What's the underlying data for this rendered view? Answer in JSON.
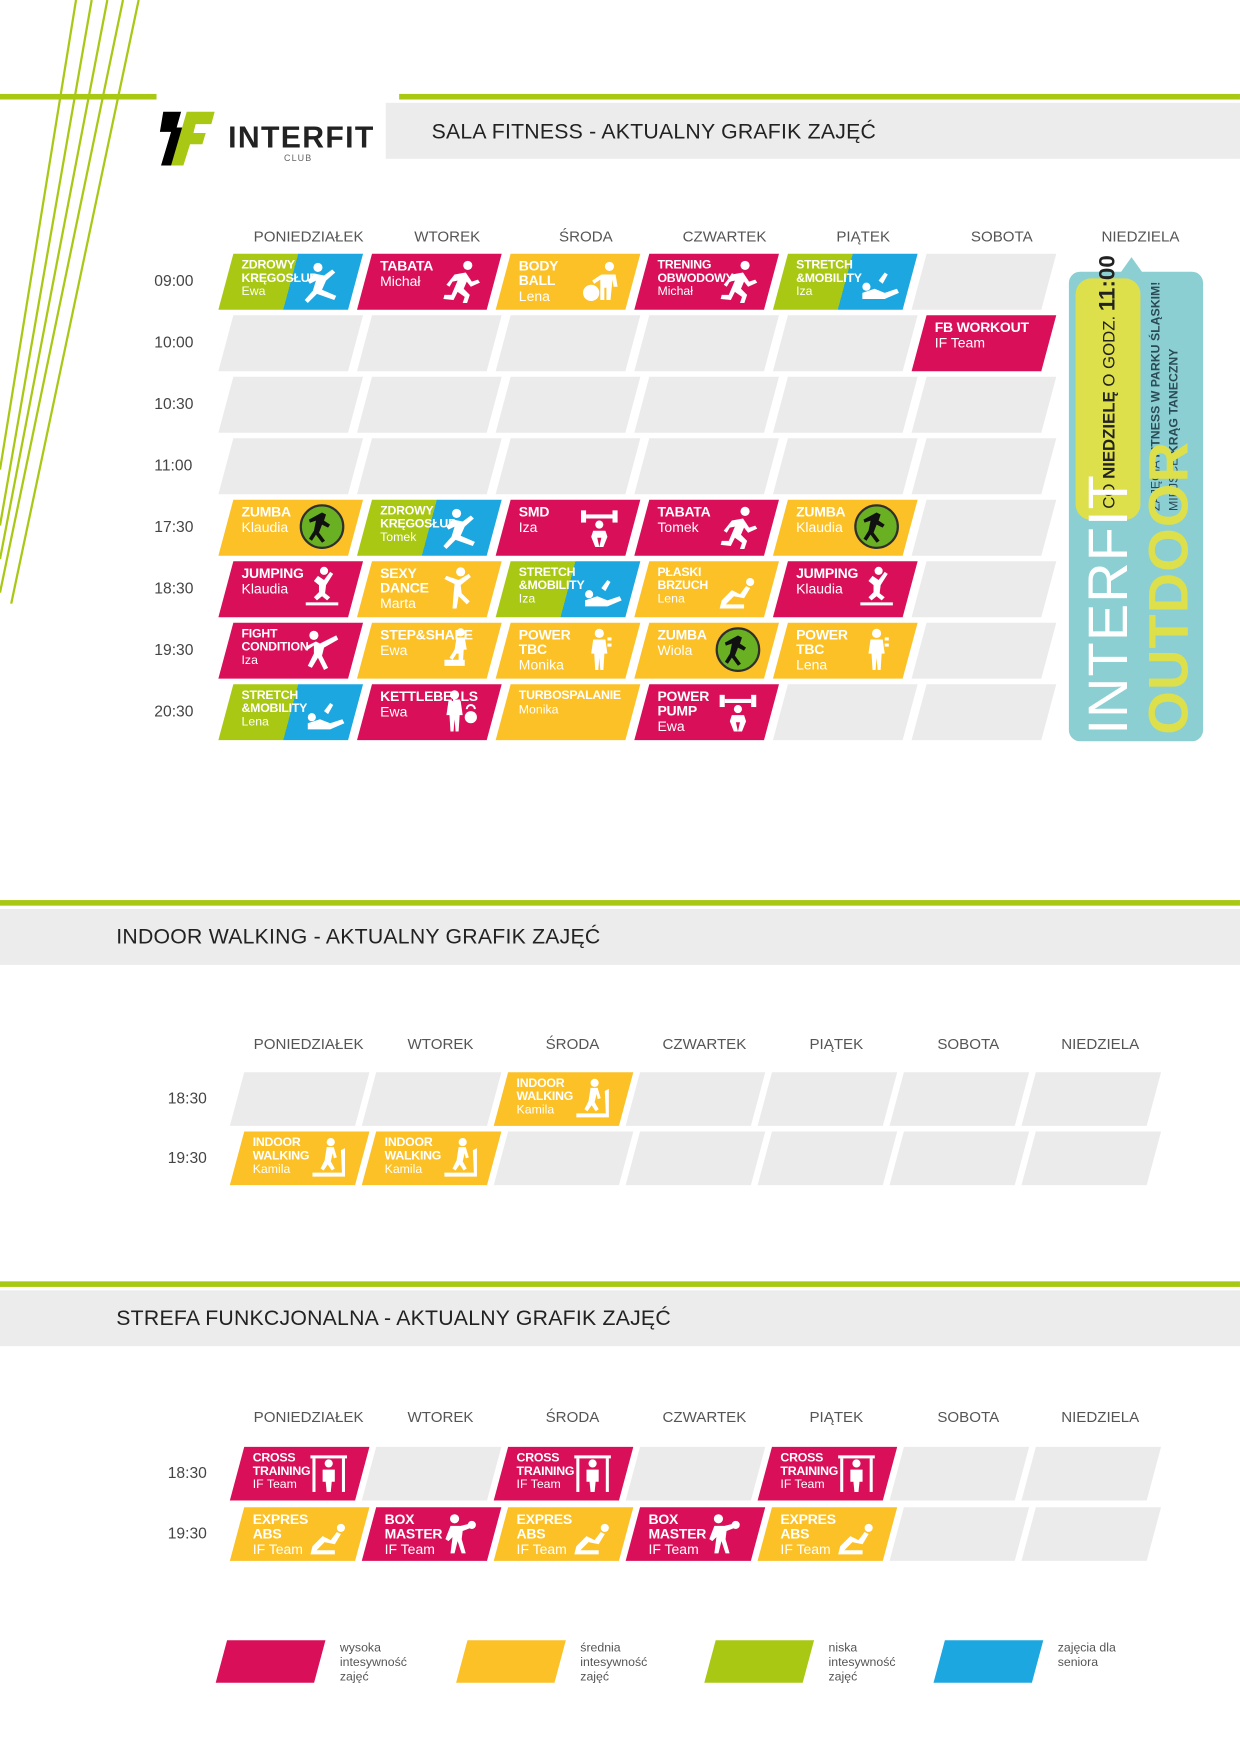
{
  "brand": {
    "logo_text": "INTERFIT",
    "logo_sub": "CLUB",
    "logo_mark": "1F"
  },
  "colors": {
    "high": "#d90f59",
    "medium": "#fbc127",
    "low": "#a8c813",
    "senior": "#1da7e1",
    "accent_green": "#a8c813"
  },
  "fitness": {
    "title": "SALA FITNESS - AKTUALNY GRAFIK ZAJĘĆ",
    "days": [
      "PONIEDZIAŁEK",
      "WTOREK",
      "ŚRODA",
      "CZWARTEK",
      "PIĄTEK",
      "SOBOTA",
      "NIEDZIELA"
    ],
    "times": [
      "09:00",
      "10:00",
      "10:30",
      "11:00",
      "17:30",
      "18:30",
      "19:30",
      "20:30"
    ],
    "classes": [
      {
        "time": "09:00",
        "day": 0,
        "name": "ZDROWY KRĘGOSŁUP",
        "trainer": "Ewa",
        "color": [
          "low",
          "senior"
        ],
        "icon": "lunge-icon"
      },
      {
        "time": "09:00",
        "day": 1,
        "name": "TABATA",
        "trainer": "Michał",
        "color": "high",
        "icon": "running-icon"
      },
      {
        "time": "09:00",
        "day": 2,
        "name": "BODY BALL",
        "trainer": "Lena",
        "color": "medium",
        "icon": "body-ball-icon"
      },
      {
        "time": "09:00",
        "day": 3,
        "name": "TRENING OBWODOWY",
        "trainer": "Michał",
        "color": "high",
        "icon": "running-icon"
      },
      {
        "time": "09:00",
        "day": 4,
        "name": "STRETCH &MOBILITY",
        "trainer": "Iza",
        "color": [
          "low",
          "senior"
        ],
        "icon": "stretch-icon"
      },
      {
        "time": "10:00",
        "day": 5,
        "name": "FB WORKOUT",
        "trainer": "IF Team",
        "color": "high",
        "icon": ""
      },
      {
        "time": "17:30",
        "day": 0,
        "name": "ZUMBA",
        "trainer": "Klaudia",
        "color": "medium",
        "icon": "zumba-icon"
      },
      {
        "time": "17:30",
        "day": 1,
        "name": "ZDROWY KRĘGOSŁUP",
        "trainer": "Tomek",
        "color": [
          "low",
          "senior"
        ],
        "icon": "lunge-icon"
      },
      {
        "time": "17:30",
        "day": 2,
        "name": "SMD",
        "trainer": "Iza",
        "color": "high",
        "icon": "barbell-icon"
      },
      {
        "time": "17:30",
        "day": 3,
        "name": "TABATA",
        "trainer": "Tomek",
        "color": "high",
        "icon": "running-icon"
      },
      {
        "time": "17:30",
        "day": 4,
        "name": "ZUMBA",
        "trainer": "Klaudia",
        "color": "medium",
        "icon": "zumba-icon"
      },
      {
        "time": "18:30",
        "day": 0,
        "name": "JUMPING",
        "trainer": "Klaudia",
        "color": "high",
        "icon": "jumping-icon"
      },
      {
        "time": "18:30",
        "day": 1,
        "name": "SEXY DANCE",
        "trainer": "Marta",
        "color": "medium",
        "icon": "dance-icon"
      },
      {
        "time": "18:30",
        "day": 2,
        "name": "STRETCH &MOBILITY",
        "trainer": "Iza",
        "color": [
          "low",
          "senior"
        ],
        "icon": "stretch-icon"
      },
      {
        "time": "18:30",
        "day": 3,
        "name": "PŁASKI BRZUCH",
        "trainer": "Lena",
        "color": "medium",
        "icon": "crunch-icon"
      },
      {
        "time": "18:30",
        "day": 4,
        "name": "JUMPING",
        "trainer": "Klaudia",
        "color": "high",
        "icon": "jumping-icon"
      },
      {
        "time": "19:30",
        "day": 0,
        "name": "FIGHT CONDITION",
        "trainer": "Iza",
        "color": "high",
        "icon": "kick-icon"
      },
      {
        "time": "19:30",
        "day": 1,
        "name": "STEP&SHAPE",
        "trainer": "Ewa",
        "color": "medium",
        "icon": "step-icon"
      },
      {
        "time": "19:30",
        "day": 2,
        "name": "POWER TBC",
        "trainer": "Monika",
        "color": "medium",
        "icon": "dumbbell-icon"
      },
      {
        "time": "19:30",
        "day": 3,
        "name": "ZUMBA",
        "trainer": "Wiola",
        "color": "medium",
        "icon": "zumba-icon"
      },
      {
        "time": "19:30",
        "day": 4,
        "name": "POWER TBC",
        "trainer": "Lena",
        "color": "medium",
        "icon": "dumbbell-icon"
      },
      {
        "time": "20:30",
        "day": 0,
        "name": "STRETCH &MOBILITY",
        "trainer": "Lena",
        "color": [
          "low",
          "senior"
        ],
        "icon": "stretch-icon"
      },
      {
        "time": "20:30",
        "day": 1,
        "name": "KETTLEBELLS",
        "trainer": "Ewa",
        "color": "high",
        "icon": "kettlebell-icon"
      },
      {
        "time": "20:30",
        "day": 2,
        "name": "TURBOSPALANIE",
        "trainer": "Monika",
        "color": "medium",
        "icon": ""
      },
      {
        "time": "20:30",
        "day": 3,
        "name": "POWER PUMP",
        "trainer": "Ewa",
        "color": "high",
        "icon": "barbell-icon"
      }
    ],
    "outdoor": {
      "title1": "INTERFIT",
      "title2": "OUTDOOR",
      "line1_a": "CO",
      "line1_b": "NIEDZIELĘ",
      "line1_c": "O GODZ.",
      "line1_d": "11:00",
      "line2_a": "ZAJĘCIA",
      "line2_b": "FITNESS W PARKU ŚLĄSKIM!",
      "line3_a": "MIEJSCE",
      "line3_b": "KRĄG TANECZNY"
    }
  },
  "walking": {
    "title": "INDOOR WALKING - AKTUALNY GRAFIK ZAJĘĆ",
    "days": [
      "PONIEDZIAŁEK",
      "WTOREK",
      "ŚRODA",
      "CZWARTEK",
      "PIĄTEK",
      "SOBOTA",
      "NIEDZIELA"
    ],
    "times": [
      "18:30",
      "19:30"
    ],
    "classes": [
      {
        "time": "18:30",
        "day": 2,
        "name": "INDOOR WALKING",
        "trainer": "Kamila",
        "color": "medium",
        "icon": "treadmill-icon"
      },
      {
        "time": "19:30",
        "day": 0,
        "name": "INDOOR WALKING",
        "trainer": "Kamila",
        "color": "medium",
        "icon": "treadmill-icon"
      },
      {
        "time": "19:30",
        "day": 1,
        "name": "INDOOR WALKING",
        "trainer": "Kamila",
        "color": "medium",
        "icon": "treadmill-icon"
      }
    ]
  },
  "functional": {
    "title": "STREFA FUNKCJONALNA - AKTUALNY GRAFIK ZAJĘĆ",
    "days": [
      "PONIEDZIAŁEK",
      "WTOREK",
      "ŚRODA",
      "CZWARTEK",
      "PIĄTEK",
      "SOBOTA",
      "NIEDZIELA"
    ],
    "times": [
      "18:30",
      "19:30"
    ],
    "classes": [
      {
        "time": "18:30",
        "day": 0,
        "name": "CROSS TRAINING",
        "trainer": "IF Team",
        "color": "high",
        "icon": "cross-training-icon"
      },
      {
        "time": "18:30",
        "day": 2,
        "name": "CROSS TRAINING",
        "trainer": "IF Team",
        "color": "high",
        "icon": "cross-training-icon"
      },
      {
        "time": "18:30",
        "day": 4,
        "name": "CROSS TRAINING",
        "trainer": "IF Team",
        "color": "high",
        "icon": "cross-training-icon"
      },
      {
        "time": "19:30",
        "day": 0,
        "name": "EXPRES ABS",
        "trainer": "IF Team",
        "color": "medium",
        "icon": "crunch-icon"
      },
      {
        "time": "19:30",
        "day": 1,
        "name": "BOX MASTER",
        "trainer": "IF Team",
        "color": "high",
        "icon": "boxing-icon"
      },
      {
        "time": "19:30",
        "day": 2,
        "name": "EXPRES ABS",
        "trainer": "IF Team",
        "color": "medium",
        "icon": "crunch-icon"
      },
      {
        "time": "19:30",
        "day": 3,
        "name": "BOX MASTER",
        "trainer": "IF Team",
        "color": "high",
        "icon": "boxing-icon"
      },
      {
        "time": "19:30",
        "day": 4,
        "name": "EXPRES ABS",
        "trainer": "IF Team",
        "color": "medium",
        "icon": "crunch-icon"
      }
    ]
  },
  "legend": [
    {
      "color": "high",
      "label": "wysoka intesywność zajęć"
    },
    {
      "color": "medium",
      "label": "średnia intesywność zajęć"
    },
    {
      "color": "low",
      "label": "niska intesywność zajęć"
    },
    {
      "color": "senior",
      "label": "zajęcia dla seniora"
    }
  ]
}
